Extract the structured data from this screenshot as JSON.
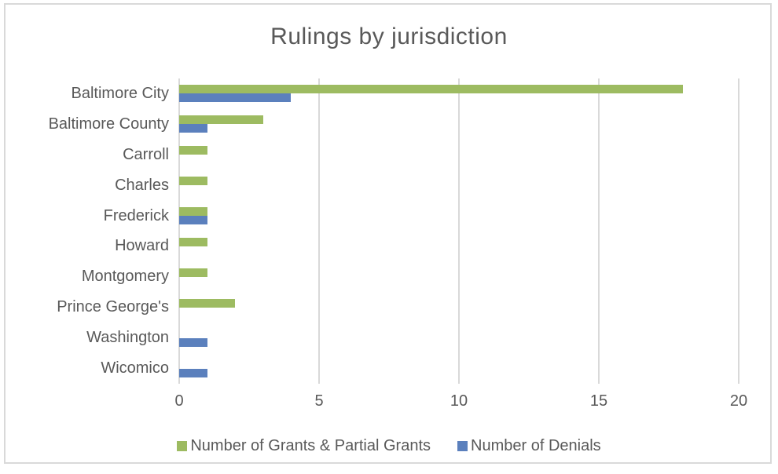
{
  "chart_data": {
    "type": "bar",
    "orientation": "horizontal",
    "title": "Rulings by jurisdiction",
    "categories": [
      "Baltimore City",
      "Baltimore County",
      "Carroll",
      "Charles",
      "Frederick",
      "Howard",
      "Montgomery",
      "Prince George's",
      "Washington",
      "Wicomico"
    ],
    "series": [
      {
        "name": "Number of Grants & Partial Grants",
        "key": "grants",
        "color": "#9dbb61",
        "values": [
          18,
          3,
          1,
          1,
          1,
          1,
          1,
          2,
          0,
          0
        ]
      },
      {
        "name": "Number of Denials",
        "key": "denials",
        "color": "#5b80bd",
        "values": [
          4,
          1,
          0,
          0,
          1,
          0,
          0,
          0,
          1,
          1
        ]
      }
    ],
    "xlabel": "",
    "ylabel": "",
    "xlim": [
      0,
      20
    ],
    "xticks": [
      0,
      5,
      10,
      15,
      20
    ],
    "grid": "vertical",
    "legend_position": "bottom",
    "text_color": "#595959",
    "grid_color": "#d9d9d9"
  }
}
